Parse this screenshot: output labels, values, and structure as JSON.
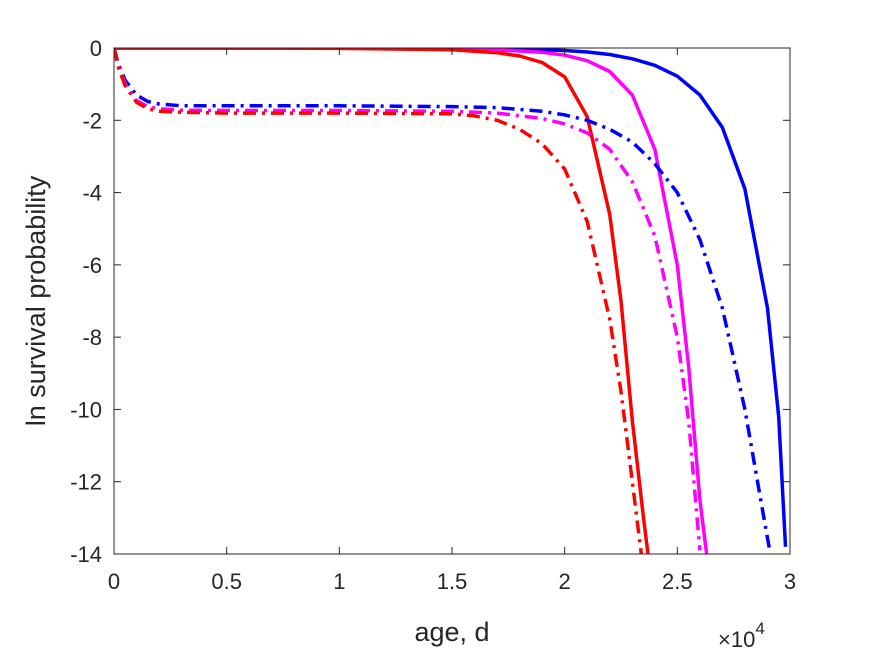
{
  "chart_data": {
    "type": "line",
    "title": "",
    "xlabel": "age, d",
    "ylabel": "ln survival probability",
    "x_multiplier": "×10",
    "x_multiplier_exp": "4",
    "xlim": [
      0,
      30000
    ],
    "ylim": [
      -14,
      0
    ],
    "x_ticks": [
      0,
      5000,
      10000,
      15000,
      20000,
      25000,
      30000
    ],
    "x_tick_labels": [
      "0",
      "0.5",
      "1",
      "1.5",
      "2",
      "2.5",
      "3"
    ],
    "y_ticks": [
      0,
      -2,
      -4,
      -6,
      -8,
      -10,
      -12,
      -14
    ],
    "y_tick_labels": [
      "0",
      "-2",
      "-4",
      "-6",
      "-8",
      "-10",
      "-12",
      "-14"
    ],
    "grid": false,
    "legend": "none",
    "series": [
      {
        "color": "#0000ff",
        "style": "solid",
        "x": [
          0,
          5000,
          10000,
          15000,
          18000,
          20000,
          21000,
          22000,
          23000,
          24000,
          25000,
          26000,
          27000,
          28000,
          29000,
          29500,
          29800
        ],
        "y": [
          0,
          0,
          0,
          -0.01,
          -0.03,
          -0.07,
          -0.11,
          -0.18,
          -0.3,
          -0.48,
          -0.78,
          -1.3,
          -2.2,
          -3.9,
          -7.2,
          -10.2,
          -13.8
        ]
      },
      {
        "color": "#ff00ff",
        "style": "solid",
        "x": [
          0,
          5000,
          10000,
          15000,
          17000,
          19000,
          20000,
          21000,
          22000,
          23000,
          24000,
          25000,
          25500,
          26000,
          26300
        ],
        "y": [
          0,
          0,
          0,
          -0.02,
          -0.05,
          -0.12,
          -0.2,
          -0.35,
          -0.65,
          -1.3,
          -2.8,
          -6.0,
          -8.8,
          -12.5,
          -14
        ]
      },
      {
        "color": "#ff0000",
        "style": "solid",
        "x": [
          0,
          5000,
          10000,
          15000,
          17000,
          18000,
          19000,
          20000,
          21000,
          22000,
          22500,
          23000,
          23500,
          23700
        ],
        "y": [
          0,
          0,
          -0.01,
          -0.05,
          -0.13,
          -0.22,
          -0.4,
          -0.8,
          -1.9,
          -4.6,
          -7.0,
          -10.3,
          -13.0,
          -14
        ]
      },
      {
        "color": "#0000ff",
        "style": "dashdot",
        "x": [
          0,
          200,
          500,
          1000,
          1500,
          2000,
          3000,
          5000,
          10000,
          15000,
          17000,
          19000,
          20000,
          21000,
          22000,
          23000,
          24000,
          25000,
          26000,
          27000,
          28000,
          28700,
          29100
        ],
        "y": [
          0,
          -0.45,
          -0.9,
          -1.3,
          -1.48,
          -1.55,
          -1.6,
          -1.6,
          -1.6,
          -1.62,
          -1.65,
          -1.75,
          -1.85,
          -2.0,
          -2.25,
          -2.6,
          -3.2,
          -4.0,
          -5.3,
          -7.2,
          -10.0,
          -12.5,
          -13.9
        ]
      },
      {
        "color": "#ff00ff",
        "style": "dashdot",
        "x": [
          0,
          200,
          500,
          1000,
          1500,
          2000,
          3000,
          5000,
          10000,
          15000,
          17000,
          19000,
          20000,
          21000,
          22000,
          23000,
          24000,
          25000,
          25500,
          26000
        ],
        "y": [
          0,
          -0.5,
          -1.0,
          -1.45,
          -1.62,
          -1.68,
          -1.72,
          -1.73,
          -1.73,
          -1.75,
          -1.8,
          -1.95,
          -2.1,
          -2.35,
          -2.8,
          -3.7,
          -5.2,
          -8.0,
          -10.3,
          -13.9
        ]
      },
      {
        "color": "#ff0000",
        "style": "dashdot",
        "x": [
          0,
          200,
          500,
          1000,
          1500,
          2000,
          3000,
          5000,
          10000,
          15000,
          16000,
          17000,
          18000,
          19000,
          20000,
          21000,
          22000,
          22500,
          23000,
          23400
        ],
        "y": [
          0,
          -0.55,
          -1.05,
          -1.5,
          -1.68,
          -1.75,
          -1.78,
          -1.8,
          -1.8,
          -1.82,
          -1.88,
          -2.0,
          -2.25,
          -2.65,
          -3.35,
          -4.8,
          -7.5,
          -9.5,
          -12.0,
          -14
        ]
      }
    ]
  }
}
